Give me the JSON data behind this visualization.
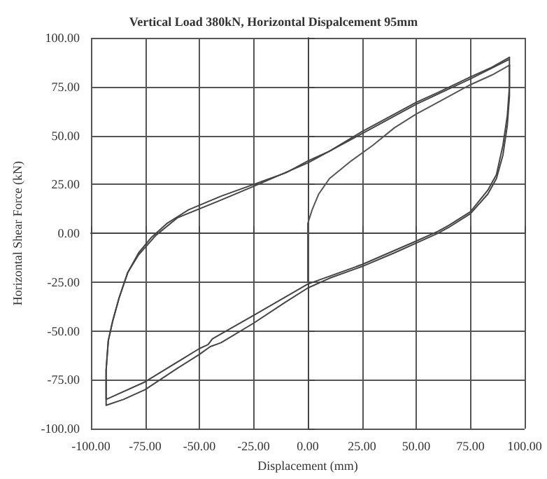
{
  "chart_data": {
    "type": "line",
    "title": "Vertical Load 380kN, Horizontal Dispalcement 95mm",
    "xlabel": "Displacement (mm)",
    "ylabel": "Horizontal Shear Force (kN)",
    "xlim": [
      -100,
      100
    ],
    "ylim": [
      -100,
      100
    ],
    "xticks": [
      {
        "value": -100,
        "label": "-100.00"
      },
      {
        "value": -75,
        "label": "-75.00"
      },
      {
        "value": -50,
        "label": "-50.00"
      },
      {
        "value": -25,
        "label": "-25.00"
      },
      {
        "value": 0,
        "label": "0.00"
      },
      {
        "value": 25,
        "label": "25.00"
      },
      {
        "value": 50,
        "label": "50.00"
      },
      {
        "value": 75,
        "label": "75.00"
      },
      {
        "value": 100,
        "label": "100.00"
      }
    ],
    "yticks": [
      {
        "value": -100,
        "label": "-100.00"
      },
      {
        "value": -75,
        "label": "-75.00"
      },
      {
        "value": -50,
        "label": "-50.00"
      },
      {
        "value": -25,
        "label": "-25.00"
      },
      {
        "value": 0,
        "label": "0.00"
      },
      {
        "value": 25,
        "label": "25.00"
      },
      {
        "value": 50,
        "label": "50.00"
      },
      {
        "value": 75,
        "label": "75.00"
      },
      {
        "value": 100,
        "label": "100.00"
      }
    ],
    "grid": true,
    "marker": "none",
    "line_style": "solid",
    "series": [
      {
        "color": "#555555",
        "x": [
          0,
          0,
          0,
          0,
          2,
          5,
          10,
          20,
          30,
          40,
          50,
          60,
          75,
          85,
          93
        ],
        "values": [
          -25,
          -10,
          0,
          5,
          12,
          20,
          28,
          37,
          45,
          54,
          61,
          67,
          76,
          81,
          86
        ]
      },
      {
        "color": "#444444",
        "x": [
          93,
          93,
          92,
          90,
          87,
          83,
          75,
          65,
          60,
          50,
          40,
          25,
          10,
          0,
          -10,
          -25,
          -40,
          -45,
          -50,
          -60,
          -75,
          -85,
          -93,
          -93,
          -92,
          -90,
          -87,
          -83,
          -78,
          -72,
          -65,
          -55,
          -40,
          -25,
          -10,
          0,
          10,
          25,
          40,
          50,
          60,
          75,
          85,
          93
        ],
        "values": [
          86,
          70,
          55,
          40,
          28,
          20,
          10,
          3,
          0,
          -5,
          -10,
          -17,
          -23,
          -28,
          -35,
          -46,
          -56,
          -58,
          -62,
          -69,
          -80,
          -85,
          -88,
          -70,
          -55,
          -45,
          -33,
          -20,
          -10,
          -2,
          5,
          12,
          19,
          25,
          31,
          37,
          42,
          52,
          61,
          67,
          72,
          80,
          85,
          90
        ]
      },
      {
        "color": "#444444",
        "x": [
          93,
          93,
          92,
          90,
          87,
          83,
          75,
          65,
          60,
          50,
          25,
          0,
          -25,
          -44,
          -46,
          -50,
          -75,
          -93,
          -93,
          -92,
          -90,
          -87,
          -83,
          -78,
          -70,
          -60,
          -40,
          -25,
          0,
          25,
          50,
          75,
          93
        ],
        "values": [
          90,
          75,
          60,
          45,
          30,
          22,
          11,
          4,
          1,
          -4,
          -16,
          -26,
          -42,
          -54,
          -57,
          -59,
          -76,
          -85,
          -70,
          -55,
          -45,
          -33,
          -20,
          -11,
          -1,
          8,
          17,
          24,
          36,
          51,
          66,
          79,
          89
        ]
      }
    ]
  }
}
